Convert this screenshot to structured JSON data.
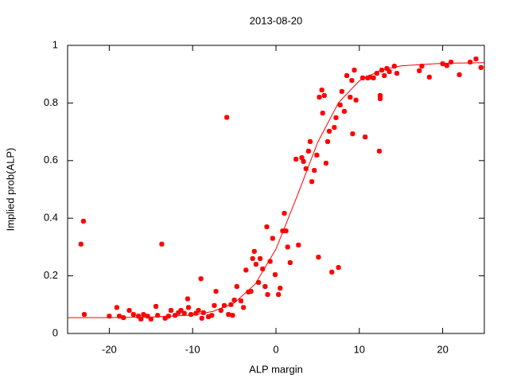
{
  "chart_data": {
    "type": "scatter",
    "title": "2013-08-20",
    "x_label": "ALP margin",
    "y_label": "Implied prob(ALP)",
    "xlim": [
      -25,
      25
    ],
    "ylim": [
      0,
      1
    ],
    "xticks": [
      -20,
      -10,
      0,
      10,
      20
    ],
    "yticks": [
      0,
      0.2,
      0.4,
      0.6,
      0.8,
      1
    ],
    "series": [
      {
        "color": "#ff0000",
        "x": [
          -23.4,
          -23.1,
          -23.0,
          -20,
          -19.1,
          -18.8,
          -18.3,
          -17.6,
          -17.1,
          -16.5,
          -16.2,
          -15.9,
          -15.4,
          -15,
          -14.4,
          -14.2,
          -13.7,
          -13.3,
          -12.9,
          -12.6,
          -12.1,
          -11.7,
          -11.4,
          -11,
          -10.6,
          -10.5,
          -10.2,
          -9.6,
          -9.3,
          -9.0,
          -8.9,
          -8.7,
          -8.1,
          -7.7,
          -7.4,
          -7.2,
          -6.6,
          -6.2,
          -5.9,
          -5.7,
          -5.4,
          -5.2,
          -5,
          -4.7,
          -4.2,
          -3.9,
          -3.6,
          -3.3,
          -3,
          -2.8,
          -2.6,
          -2.4,
          -2.1,
          -1.9,
          -1.6,
          -1.3,
          -1.1,
          -1.0,
          -0.7,
          -0.4,
          -0.1,
          0.3,
          0.5,
          0.8,
          1.0,
          1.2,
          1.4,
          1.7,
          2.4,
          2.7,
          3.1,
          3.3,
          3.6,
          3.9,
          4.1,
          4.3,
          4.6,
          4.9,
          5.1,
          5.2,
          5.5,
          5.6,
          5.8,
          6.0,
          6.2,
          6.4,
          6.7,
          7.0,
          7.2,
          7.5,
          7.7,
          7.9,
          8.2,
          8.5,
          8.9,
          9.1,
          9.2,
          9.4,
          9.6,
          10.4,
          10.7,
          11.0,
          11.3,
          11.7,
          12.1,
          12.4,
          12.5,
          12.5,
          12.7,
          13.0,
          13.3,
          13.6,
          14.2,
          14.5,
          17.2,
          17.5,
          18.4,
          20.0,
          20.5,
          21.0,
          22.0,
          23.3,
          24.0,
          24.6
        ],
        "values": [
          0.31,
          0.39,
          0.066,
          0.06,
          0.09,
          0.06,
          0.055,
          0.08,
          0.066,
          0.06,
          0.05,
          0.066,
          0.06,
          0.05,
          0.094,
          0.063,
          0.31,
          0.053,
          0.06,
          0.08,
          0.063,
          0.072,
          0.08,
          0.07,
          0.12,
          0.09,
          0.066,
          0.07,
          0.08,
          0.19,
          0.053,
          0.072,
          0.058,
          0.063,
          0.097,
          0.146,
          0.08,
          0.097,
          0.75,
          0.066,
          0.1,
          0.063,
          0.116,
          0.163,
          0.113,
          0.09,
          0.22,
          0.144,
          0.146,
          0.26,
          0.285,
          0.24,
          0.177,
          0.26,
          0.224,
          0.163,
          0.37,
          0.135,
          0.25,
          0.33,
          0.204,
          0.135,
          0.157,
          0.356,
          0.417,
          0.356,
          0.3,
          0.246,
          0.605,
          0.307,
          0.61,
          0.597,
          0.572,
          0.633,
          0.666,
          0.527,
          0.566,
          0.619,
          0.265,
          0.82,
          0.845,
          0.765,
          0.826,
          0.591,
          0.666,
          0.702,
          0.213,
          0.715,
          0.749,
          0.229,
          0.793,
          0.84,
          0.771,
          0.895,
          0.82,
          0.878,
          0.693,
          0.914,
          0.81,
          0.887,
          0.682,
          0.887,
          0.89,
          0.887,
          0.903,
          0.633,
          0.826,
          0.815,
          0.914,
          0.895,
          0.92,
          0.909,
          0.928,
          0.903,
          0.912,
          0.928,
          0.89,
          0.936,
          0.93,
          0.942,
          0.898,
          0.942,
          0.953,
          0.923
        ]
      },
      {
        "type": "line",
        "color": "#ff0000",
        "x": [
          -25,
          -20,
          -15,
          -10,
          -7.5,
          -5,
          -2.5,
          0,
          2.5,
          5,
          7.5,
          10,
          12.5,
          15,
          20,
          25
        ],
        "values": [
          0.055,
          0.055,
          0.057,
          0.064,
          0.077,
          0.106,
          0.171,
          0.293,
          0.474,
          0.663,
          0.801,
          0.877,
          0.913,
          0.929,
          0.938,
          0.94
        ]
      }
    ]
  }
}
